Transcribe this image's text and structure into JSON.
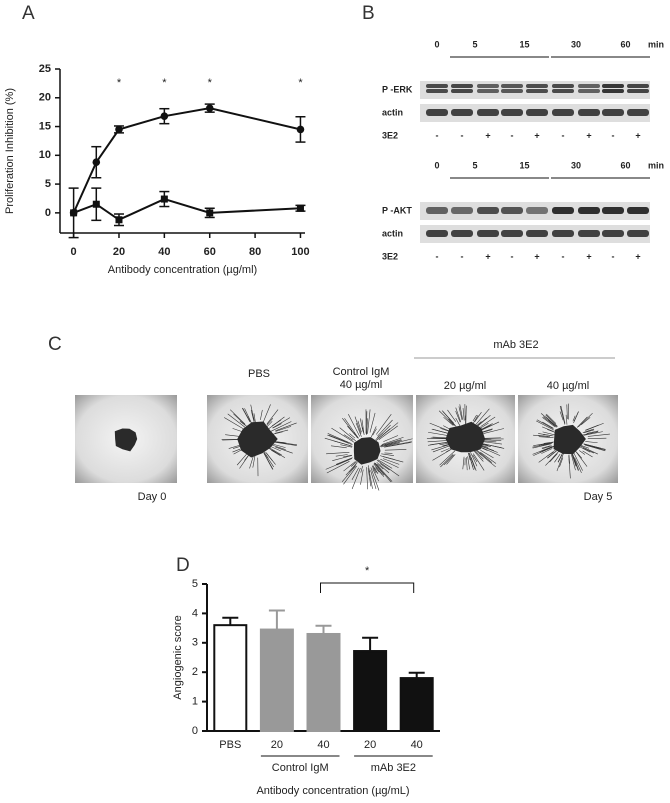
{
  "chart_data": [
    {
      "type": "line",
      "x": [
        0,
        10,
        20,
        40,
        60,
        100
      ],
      "series": [
        {
          "color": "#111111",
          "marker": "circle",
          "values": [
            0,
            8.8,
            14.5,
            16.8,
            18.2,
            14.5
          ],
          "errors": [
            4.3,
            2.7,
            0.6,
            1.3,
            0.7,
            2.2
          ]
        },
        {
          "color": "#111111",
          "marker": "square",
          "values": [
            0,
            1.5,
            -1.2,
            2.4,
            0,
            0.8
          ],
          "errors": [
            0,
            2.8,
            1.0,
            1.3,
            0.8,
            0.5
          ]
        }
      ],
      "xlim": [
        -6,
        102
      ],
      "ylim": [
        -3.5,
        25
      ],
      "xticks": [
        0,
        20,
        40,
        60,
        80,
        100
      ],
      "yticks": [
        0,
        5,
        10,
        15,
        20,
        25
      ],
      "x_label": "Antibody concentration (µg/ml)",
      "y_label": "Proliferation Inhibition (%)",
      "annotations": [
        {
          "x": 20,
          "text": "*"
        },
        {
          "x": 40,
          "text": "*"
        },
        {
          "x": 60,
          "text": "*"
        },
        {
          "x": 100,
          "text": "*"
        }
      ]
    },
    {
      "type": "bar",
      "categories": [
        "PBS",
        "20",
        "40",
        "20",
        "40"
      ],
      "values": [
        3.6,
        3.45,
        3.3,
        2.72,
        1.8
      ],
      "errors": [
        0.25,
        0.65,
        0.28,
        0.45,
        0.18
      ],
      "colors": [
        "#ffffff",
        "#999999",
        "#999999",
        "#111111",
        "#111111"
      ],
      "groups": [
        {
          "label": "Control IgM",
          "span": [
            1,
            2
          ]
        },
        {
          "label": "mAb 3E2",
          "span": [
            3,
            4
          ]
        }
      ],
      "ylim": [
        0,
        5
      ],
      "yticks": [
        0,
        1,
        2,
        3,
        4,
        5
      ],
      "x_label": "Antibody concentration (µg/mL)",
      "y_label": "Angiogenic score",
      "bracket": {
        "span": [
          2,
          4
        ],
        "text": "*"
      }
    }
  ],
  "panel_labels": [
    "A",
    "B",
    "C",
    "D"
  ],
  "blot": {
    "times": [
      0,
      5,
      15,
      30,
      60
    ],
    "unit": "min",
    "treatment_label": "3E2",
    "treatment": [
      "-",
      "-",
      "+",
      "-",
      "+",
      "-",
      "+",
      "-",
      "+"
    ],
    "blots": [
      {
        "rows": [
          "P -ERK",
          "actin"
        ]
      },
      {
        "rows": [
          "P -AKT",
          "actin"
        ]
      }
    ]
  },
  "images": {
    "day0": "Day 0",
    "day5": "Day 5",
    "pbs": "PBS",
    "control": [
      "Control IgM",
      "40 µg/ml"
    ],
    "mab": "mAb 3E2",
    "doses": [
      "20 µg/ml",
      "40 µg/ml"
    ]
  }
}
